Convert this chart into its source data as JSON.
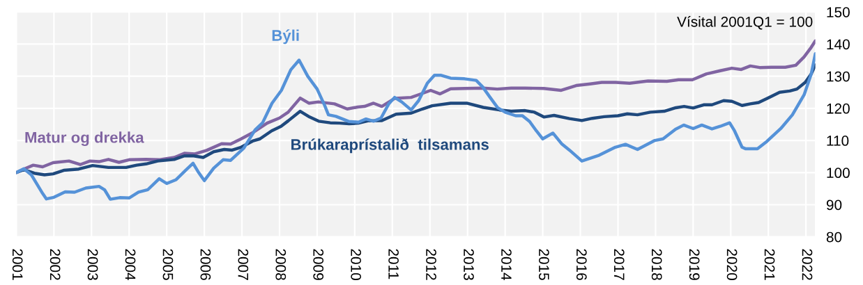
{
  "chart_data": {
    "type": "line",
    "annotations": [
      "Vísital 2001Q1 = 100"
    ],
    "xlim": [
      2001,
      2022.25
    ],
    "xticks": [
      2001,
      2002,
      2003,
      2004,
      2005,
      2006,
      2007,
      2008,
      2009,
      2010,
      2011,
      2012,
      2013,
      2014,
      2015,
      2016,
      2017,
      2018,
      2019,
      2020,
      2021,
      2022
    ],
    "ylim": [
      80,
      150
    ],
    "yticks": [
      80,
      90,
      100,
      110,
      120,
      130,
      140,
      150
    ],
    "grid": true,
    "marker": "none",
    "line_style": "solid",
    "series": [
      {
        "name": "Matur og drekka",
        "color": "#8064a2",
        "x": [
          2001.0,
          2001.2,
          2001.45,
          2001.7,
          2001.98,
          2002.4,
          2002.7,
          2002.96,
          2003.2,
          2003.45,
          2003.73,
          2004.0,
          2004.45,
          2004.82,
          2005.2,
          2005.47,
          2005.75,
          2006.06,
          2006.46,
          2006.7,
          2006.98,
          2007.3,
          2007.67,
          2008.0,
          2008.23,
          2008.55,
          2008.78,
          2009.03,
          2009.46,
          2009.8,
          2010.08,
          2010.26,
          2010.5,
          2010.72,
          2011.06,
          2011.5,
          2011.74,
          2012.02,
          2012.27,
          2012.55,
          2012.92,
          2013.42,
          2013.79,
          2014.16,
          2014.53,
          2015.03,
          2015.49,
          2015.89,
          2016.26,
          2016.57,
          2016.94,
          2017.31,
          2017.8,
          2018.3,
          2018.61,
          2018.98,
          2019.35,
          2019.72,
          2020.03,
          2020.28,
          2020.52,
          2020.77,
          2021.08,
          2021.45,
          2021.73,
          2021.95,
          2022.14,
          2022.25
        ],
        "values": [
          100,
          101.1,
          102.3,
          101.8,
          103.1,
          103.6,
          102.5,
          103.6,
          103.4,
          104.1,
          103.2,
          104,
          104.1,
          104,
          104.7,
          106,
          105.8,
          106.9,
          109,
          108.9,
          110.5,
          112.5,
          115.4,
          117,
          118.8,
          123.2,
          121.6,
          122,
          121.4,
          119.8,
          120.4,
          120.6,
          121.6,
          120.6,
          123.1,
          123.4,
          124.4,
          125.6,
          124.5,
          126.1,
          126.2,
          126.3,
          126,
          126.3,
          126.3,
          126.2,
          125.6,
          127.1,
          127.6,
          128.1,
          128.1,
          127.8,
          128.5,
          128.4,
          128.9,
          128.9,
          130.7,
          131.7,
          132.5,
          132.1,
          133.2,
          132.7,
          132.8,
          132.8,
          133.4,
          136,
          139,
          141
        ]
      },
      {
        "name": "Brúkaraprístalið  tilsamans",
        "color": "#1f497d",
        "x": [
          2001.0,
          2001.2,
          2001.48,
          2001.75,
          2001.98,
          2002.26,
          2002.66,
          2003.03,
          2003.45,
          2003.92,
          2004.2,
          2004.45,
          2004.76,
          2005.2,
          2005.47,
          2005.72,
          2005.97,
          2006.25,
          2006.53,
          2006.74,
          2006.98,
          2007.3,
          2007.48,
          2007.79,
          2008.04,
          2008.23,
          2008.55,
          2008.8,
          2009.04,
          2009.35,
          2009.6,
          2009.85,
          2010.1,
          2010.35,
          2010.72,
          2011.1,
          2011.5,
          2011.8,
          2012.06,
          2012.55,
          2012.98,
          2013.42,
          2013.85,
          2014.16,
          2014.53,
          2014.78,
          2015.03,
          2015.3,
          2015.71,
          2016.04,
          2016.32,
          2016.63,
          2017.0,
          2017.25,
          2017.52,
          2017.86,
          2018.23,
          2018.54,
          2018.76,
          2019.0,
          2019.28,
          2019.5,
          2019.81,
          2020.03,
          2020.3,
          2020.52,
          2020.74,
          2021.02,
          2021.3,
          2021.57,
          2021.76,
          2021.98,
          2022.14,
          2022.25
        ],
        "values": [
          100,
          100.9,
          99.8,
          99.3,
          99.6,
          100.7,
          101.1,
          102.2,
          101.6,
          101.6,
          102.3,
          102.7,
          103.6,
          104.1,
          105.2,
          105.2,
          104.7,
          106.5,
          107.2,
          107,
          107.9,
          109.9,
          110.5,
          113,
          114.4,
          116.1,
          119.1,
          117.3,
          116,
          115.5,
          115.4,
          115.2,
          115.4,
          116.1,
          116.2,
          118.2,
          118.5,
          119.8,
          120.8,
          121.6,
          121.6,
          120.3,
          119.5,
          119.1,
          119.3,
          118.8,
          117.3,
          117.8,
          116.8,
          116.2,
          116.9,
          117.4,
          117.7,
          118.3,
          118,
          118.8,
          119.1,
          120.2,
          120.6,
          120.1,
          121.1,
          121.1,
          122.4,
          122.2,
          120.9,
          121.4,
          121.8,
          123.4,
          125,
          125.4,
          126,
          128.1,
          130.7,
          133.5
        ]
      },
      {
        "name": "Býli",
        "color": "#5592d8",
        "x": [
          2001.0,
          2001.2,
          2001.4,
          2001.7,
          2001.8,
          2002.0,
          2002.3,
          2002.55,
          2002.85,
          2003.2,
          2003.35,
          2003.5,
          2003.75,
          2004.0,
          2004.25,
          2004.5,
          2004.8,
          2005.0,
          2005.25,
          2005.5,
          2005.7,
          2005.85,
          2006.0,
          2006.25,
          2006.5,
          2006.7,
          2007.05,
          2007.35,
          2007.55,
          2007.8,
          2008.05,
          2008.3,
          2008.52,
          2008.75,
          2009.0,
          2009.2,
          2009.3,
          2009.5,
          2009.85,
          2010.1,
          2010.3,
          2010.5,
          2010.7,
          2010.9,
          2011.06,
          2011.25,
          2011.5,
          2011.7,
          2011.93,
          2012.12,
          2012.3,
          2012.55,
          2012.92,
          2013.23,
          2013.4,
          2013.6,
          2013.8,
          2014.0,
          2014.28,
          2014.46,
          2014.65,
          2014.83,
          2015.0,
          2015.27,
          2015.5,
          2015.71,
          2016.04,
          2016.5,
          2016.93,
          2017.2,
          2017.52,
          2017.98,
          2018.2,
          2018.53,
          2018.75,
          2019.0,
          2019.23,
          2019.5,
          2019.72,
          2019.97,
          2020.1,
          2020.3,
          2020.4,
          2020.71,
          2020.96,
          2021.33,
          2021.64,
          2021.95,
          2022.14,
          2022.25
        ],
        "values": [
          100,
          101.2,
          99.3,
          93.5,
          91.8,
          92.3,
          94,
          93.9,
          95.2,
          95.7,
          94.6,
          91.7,
          92.2,
          92.1,
          93.9,
          94.7,
          98.1,
          96.6,
          97.8,
          100.7,
          102.9,
          100,
          97.5,
          101.4,
          104,
          103.8,
          107.6,
          113.3,
          115.5,
          121.6,
          125.6,
          132,
          135,
          130,
          126,
          120.9,
          118,
          117.5,
          115.9,
          115.7,
          116.7,
          116,
          117,
          121.3,
          123.4,
          122,
          119.5,
          122.4,
          127.8,
          130.3,
          130.3,
          129.4,
          129.2,
          128.7,
          126.7,
          123.4,
          120.2,
          118.8,
          117.7,
          117.7,
          115.9,
          113,
          110.5,
          112.3,
          109,
          107,
          103.6,
          105.4,
          107.9,
          108.8,
          107.2,
          110,
          110.5,
          113.5,
          114.8,
          113.7,
          114.8,
          113.6,
          114.4,
          115.5,
          113,
          107.9,
          107.4,
          107.4,
          109.7,
          113.7,
          118,
          124.2,
          130.7,
          137
        ]
      }
    ]
  }
}
